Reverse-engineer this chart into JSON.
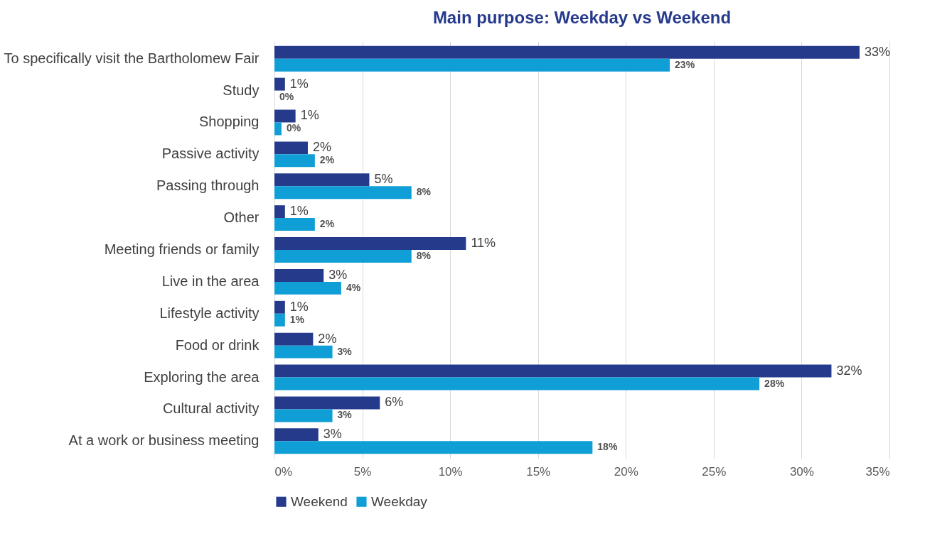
{
  "chart_data": {
    "type": "bar",
    "orientation": "horizontal",
    "title": "Main purpose: Weekday vs Weekend",
    "categories": [
      "To specifically visit the Bartholomew Fair",
      "Study",
      "Shopping",
      "Passive activity",
      "Passing through",
      "Other",
      "Meeting friends or family",
      "Live in the area",
      "Lifestyle activity",
      "Food or drink",
      "Exploring the area",
      "Cultural activity",
      "At a work or business meeting"
    ],
    "series": [
      {
        "name": "Weekend",
        "color": "#263a8c",
        "values": [
          33.3,
          0.6,
          1.2,
          1.9,
          5.4,
          0.6,
          10.9,
          2.8,
          0.6,
          2.2,
          31.7,
          6.0,
          2.5
        ],
        "value_labels": [
          "33%",
          "1%",
          "1%",
          "2%",
          "5%",
          "1%",
          "11%",
          "3%",
          "1%",
          "2%",
          "32%",
          "6%",
          "3%"
        ]
      },
      {
        "name": "Weekday",
        "color": "#0f9ed5",
        "values": [
          22.5,
          0,
          0.4,
          2.3,
          7.8,
          2.3,
          7.8,
          3.8,
          0.6,
          3.3,
          27.6,
          3.3,
          18.1
        ],
        "value_labels": [
          "23%",
          "0%",
          "0%",
          "2%",
          "8%",
          "2%",
          "8%",
          "4%",
          "1%",
          "3%",
          "28%",
          "3%",
          "18%"
        ]
      }
    ],
    "xlim": [
      0,
      35
    ],
    "xticks": [
      {
        "value": 0,
        "label": "0%"
      },
      {
        "value": 5,
        "label": "5%"
      },
      {
        "value": 10,
        "label": "10%"
      },
      {
        "value": 15,
        "label": "15%"
      },
      {
        "value": 20,
        "label": "20%"
      },
      {
        "value": 25,
        "label": "25%"
      },
      {
        "value": 30,
        "label": "30%"
      },
      {
        "value": 35,
        "label": "35%"
      }
    ],
    "grid": "x",
    "legend": "bottom"
  }
}
